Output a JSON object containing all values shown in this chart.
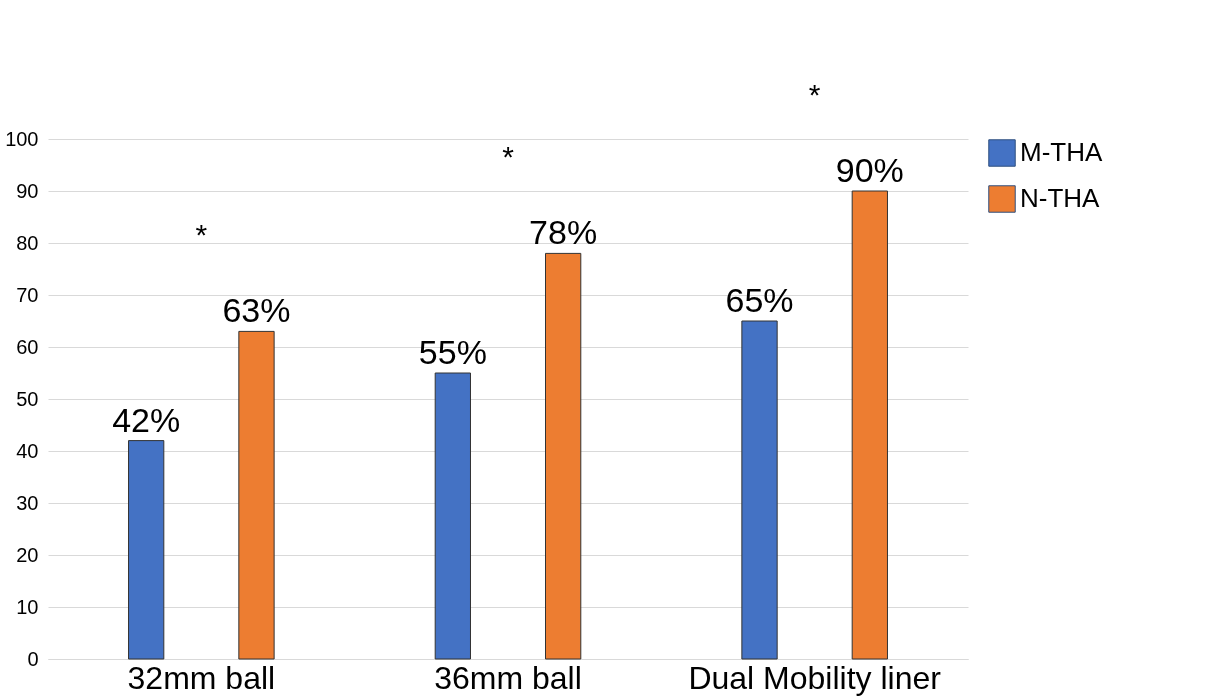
{
  "chart_data": {
    "type": "bar",
    "categories": [
      "32mm ball",
      "36mm ball",
      "Dual Mobility liner"
    ],
    "series": [
      {
        "name": "M-THA",
        "color": "#4472c4",
        "values": [
          42,
          55,
          65
        ],
        "value_labels": [
          "42%",
          "55%",
          "65%"
        ]
      },
      {
        "name": "N-THA",
        "color": "#ed7d31",
        "values": [
          63,
          78,
          90
        ],
        "value_labels": [
          "63%",
          "78%",
          "90%"
        ]
      }
    ],
    "ylim": [
      0,
      100
    ],
    "yticks": [
      0,
      10,
      20,
      30,
      40,
      50,
      60,
      70,
      80,
      90,
      100
    ],
    "grid": "y",
    "legend": "top right",
    "annotations": [
      "*",
      "*",
      "*"
    ]
  }
}
